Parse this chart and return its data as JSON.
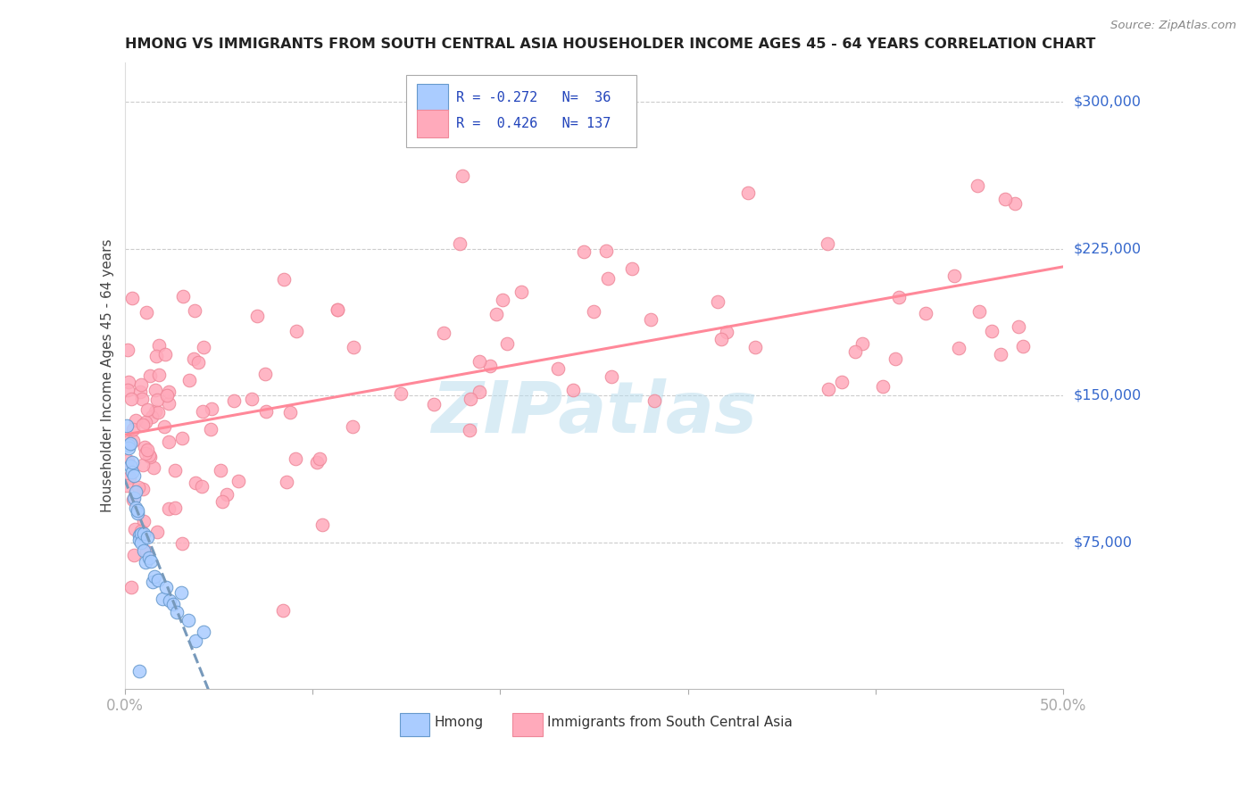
{
  "title": "HMONG VS IMMIGRANTS FROM SOUTH CENTRAL ASIA HOUSEHOLDER INCOME AGES 45 - 64 YEARS CORRELATION CHART",
  "source": "Source: ZipAtlas.com",
  "ylabel": "Householder Income Ages 45 - 64 years",
  "xlim": [
    0.0,
    0.5
  ],
  "ylim": [
    0,
    320000
  ],
  "yticks": [
    75000,
    150000,
    225000,
    300000
  ],
  "ytick_labels": [
    "$75,000",
    "$150,000",
    "$225,000",
    "$300,000"
  ],
  "xtick_positions": [
    0.0,
    0.1,
    0.2,
    0.3,
    0.4,
    0.5
  ],
  "xtick_labels": [
    "0.0%",
    "",
    "",
    "",
    "",
    "50.0%"
  ],
  "background_color": "#ffffff",
  "grid_color": "#cccccc",
  "hmong_color": "#aaccff",
  "hmong_edge": "#6699cc",
  "pink_color": "#ffaabb",
  "pink_edge": "#ee8899",
  "hmong_line_color": "#7799bb",
  "pink_line_color": "#ff8899",
  "watermark": "ZIPatlas",
  "watermark_color": "#bbddee",
  "title_color": "#222222",
  "source_color": "#888888",
  "ylabel_color": "#444444",
  "tick_label_color": "#3366cc"
}
